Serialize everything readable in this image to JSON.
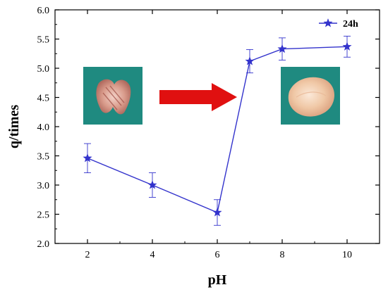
{
  "chart_data": {
    "type": "line",
    "xlabel": "pH",
    "ylabel": "q/times",
    "xlim": [
      1,
      11
    ],
    "ylim": [
      2.0,
      6.0
    ],
    "x_ticks": [
      2,
      4,
      6,
      8,
      10
    ],
    "y_ticks": [
      2.0,
      2.5,
      3.0,
      3.5,
      4.0,
      4.5,
      5.0,
      5.5,
      6.0
    ],
    "x_tick_labels": [
      "2",
      "4",
      "6",
      "8",
      "10"
    ],
    "y_tick_labels": [
      "2.0",
      "2.5",
      "3.0",
      "3.5",
      "4.0",
      "4.5",
      "5.0",
      "5.5",
      "6.0"
    ],
    "grid": false,
    "legend_position": "top-right",
    "series": [
      {
        "name": "24h",
        "color": "#3333cc",
        "marker": "star",
        "x": [
          2,
          4,
          6,
          7,
          8,
          10
        ],
        "y": [
          3.46,
          3.0,
          2.53,
          5.12,
          5.33,
          5.37
        ],
        "error": [
          0.25,
          0.21,
          0.22,
          0.2,
          0.19,
          0.18
        ]
      }
    ]
  },
  "insets": {
    "left_photo": "tissue-photo-before",
    "arrow": "red-arrow-icon",
    "right_photo": "tissue-photo-after",
    "arrow_color": "#e01010",
    "photo_bg": "#1f8a80"
  }
}
